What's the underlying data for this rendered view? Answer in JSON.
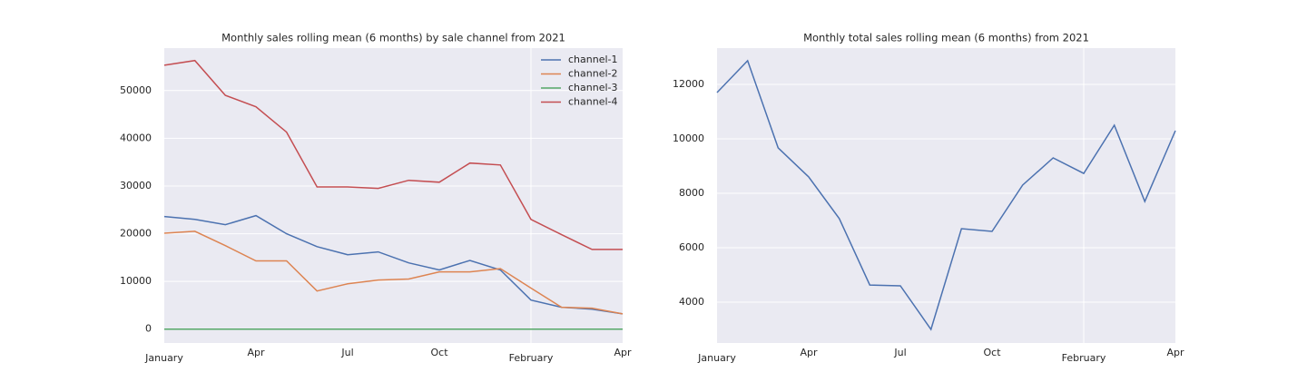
{
  "chart_data": [
    {
      "type": "line",
      "title": "Monthly sales rolling mean (6 months) by sale channel from 2021",
      "categories": [
        "January",
        null,
        null,
        "Apr",
        null,
        null,
        "Jul",
        null,
        null,
        "Oct",
        null,
        null,
        "February",
        null,
        null,
        "Apr"
      ],
      "series": [
        {
          "name": "channel-1",
          "color": "#4c72b0",
          "values": [
            23600,
            23000,
            21900,
            23800,
            20000,
            17300,
            15600,
            16200,
            13900,
            12400,
            14400,
            12400,
            6100,
            4600,
            4200,
            3200
          ]
        },
        {
          "name": "channel-2",
          "color": "#dd8452",
          "values": [
            20100,
            20500,
            17500,
            14300,
            14300,
            8000,
            9500,
            10300,
            10500,
            12000,
            12000,
            12700,
            8600,
            4600,
            4400,
            3200
          ]
        },
        {
          "name": "channel-3",
          "color": "#55a868",
          "values": [
            0,
            0,
            0,
            0,
            0,
            0,
            0,
            0,
            0,
            0,
            0,
            0,
            0,
            0,
            0,
            0
          ]
        },
        {
          "name": "channel-4",
          "color": "#c44e52",
          "values": [
            55300,
            56300,
            49000,
            46600,
            41300,
            29800,
            29800,
            29500,
            31200,
            30800,
            34800,
            34400,
            23000,
            19800,
            16700,
            16700
          ]
        }
      ],
      "ylim": [
        -2900,
        58900
      ],
      "yticks": [
        0,
        10000,
        20000,
        30000,
        40000,
        50000
      ],
      "grid": true,
      "legend": "upper right"
    },
    {
      "type": "line",
      "title": "Monthly total sales rolling mean (6 months) from 2021",
      "categories": [
        "January",
        null,
        null,
        "Apr",
        null,
        null,
        "Jul",
        null,
        null,
        "Oct",
        null,
        null,
        "February",
        null,
        null,
        "Apr"
      ],
      "series": [
        {
          "color": "#4c72b0",
          "values": [
            11700,
            12870,
            9670,
            8600,
            7070,
            4630,
            4600,
            3000,
            6700,
            6600,
            8300,
            9300,
            8730,
            10500,
            7700,
            10300
          ]
        }
      ],
      "ylim": [
        2500,
        13333
      ],
      "yticks": [
        4000,
        6000,
        8000,
        10000,
        12000
      ],
      "grid": true
    }
  ]
}
